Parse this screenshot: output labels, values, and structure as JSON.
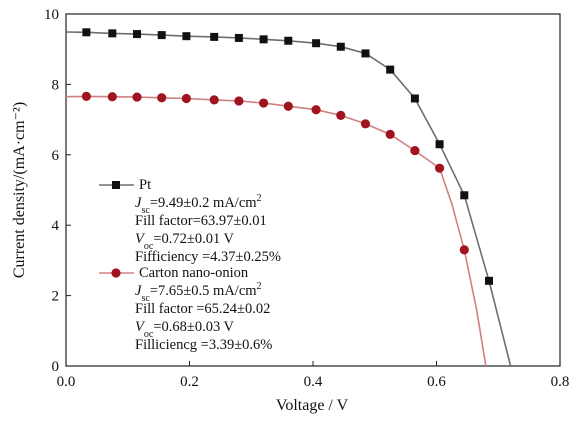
{
  "chart_data": {
    "type": "line",
    "xlabel": "Voltage / V",
    "ylabel": "Current density/(mA·cm⁻²)",
    "xlim": [
      0.0,
      0.8
    ],
    "ylim": [
      0,
      10
    ],
    "x_ticks": [
      "0.0",
      "0.2",
      "0.4",
      "0.6",
      "0.8"
    ],
    "y_ticks": [
      "0",
      "2",
      "4",
      "6",
      "8",
      "10"
    ],
    "grid": false,
    "legend_position": "lower-left",
    "series": [
      {
        "name": "Pt",
        "color": "#6e6e6e",
        "marker": "square",
        "marker_color": "#111111",
        "x": [
          0.0,
          0.033,
          0.075,
          0.115,
          0.155,
          0.195,
          0.24,
          0.28,
          0.32,
          0.36,
          0.405,
          0.445,
          0.485,
          0.525,
          0.565,
          0.605,
          0.645,
          0.685,
          0.72
        ],
        "y": [
          9.49,
          9.48,
          9.45,
          9.43,
          9.4,
          9.37,
          9.35,
          9.32,
          9.28,
          9.24,
          9.17,
          9.07,
          8.88,
          8.42,
          7.6,
          6.3,
          4.85,
          2.42,
          0.0
        ],
        "marker_x": [
          0.033,
          0.075,
          0.115,
          0.155,
          0.195,
          0.24,
          0.28,
          0.32,
          0.36,
          0.405,
          0.445,
          0.485,
          0.525,
          0.565,
          0.605,
          0.645,
          0.685
        ],
        "marker_y": [
          9.48,
          9.45,
          9.43,
          9.4,
          9.37,
          9.35,
          9.32,
          9.28,
          9.24,
          9.17,
          9.07,
          8.88,
          8.42,
          7.6,
          6.3,
          4.85,
          2.42
        ]
      },
      {
        "name": "Carton nano-onion",
        "color": "#d08080",
        "marker": "circle",
        "marker_color": "#a01420",
        "x": [
          0.0,
          0.033,
          0.075,
          0.115,
          0.155,
          0.195,
          0.24,
          0.28,
          0.32,
          0.36,
          0.405,
          0.445,
          0.485,
          0.525,
          0.565,
          0.605,
          0.625,
          0.645,
          0.665,
          0.68
        ],
        "y": [
          7.65,
          7.66,
          7.65,
          7.64,
          7.62,
          7.6,
          7.56,
          7.53,
          7.47,
          7.38,
          7.28,
          7.12,
          6.88,
          6.58,
          6.12,
          5.62,
          4.6,
          3.3,
          1.6,
          0.0
        ],
        "marker_x": [
          0.033,
          0.075,
          0.115,
          0.155,
          0.195,
          0.24,
          0.28,
          0.32,
          0.36,
          0.405,
          0.445,
          0.485,
          0.525,
          0.565,
          0.605,
          0.645
        ],
        "marker_y": [
          7.66,
          7.65,
          7.64,
          7.62,
          7.6,
          7.56,
          7.53,
          7.47,
          7.38,
          7.28,
          7.12,
          6.88,
          6.58,
          6.12,
          5.62,
          3.3
        ]
      }
    ],
    "annotations": [
      [
        {
          "parts": [
            [
              "n",
              "Pt"
            ]
          ]
        },
        {
          "parts": [
            [
              "i",
              "J"
            ],
            [
              "sub",
              "sc"
            ],
            [
              "n",
              "=9.49±0.2 mA/cm"
            ],
            [
              "sup",
              "2"
            ]
          ]
        },
        {
          "parts": [
            [
              "n",
              "Fill factor=63.97±0.01"
            ]
          ]
        },
        {
          "parts": [
            [
              "i",
              "V"
            ],
            [
              "sub",
              "oc"
            ],
            [
              "n",
              "=0.72±0.01 V"
            ]
          ]
        },
        {
          "parts": [
            [
              "n",
              "Fifficiency =4.37±0.25%"
            ]
          ]
        }
      ],
      [
        {
          "parts": [
            [
              "n",
              "Carton nano-onion"
            ]
          ]
        },
        {
          "parts": [
            [
              "i",
              "J"
            ],
            [
              "sub",
              "sc"
            ],
            [
              "n",
              "=7.65±0.5 mA/cm"
            ],
            [
              "sup",
              "2"
            ]
          ]
        },
        {
          "parts": [
            [
              "n",
              "Fill factor =65.24±0.02"
            ]
          ]
        },
        {
          "parts": [
            [
              "i",
              "V"
            ],
            [
              "sub",
              "oc"
            ],
            [
              "n",
              "=0.68±0.03 V"
            ]
          ]
        },
        {
          "parts": [
            [
              "n",
              "Filliciencg =3.39±0.6%"
            ]
          ]
        }
      ]
    ]
  }
}
